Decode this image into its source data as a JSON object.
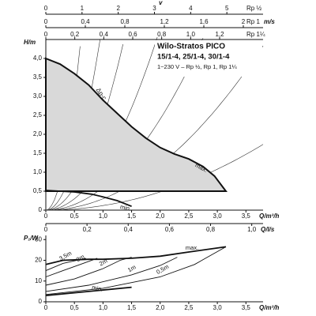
{
  "header": {
    "title": "Wilo-Stratos PICO",
    "models": "15/1-4, 25/1-4, 30/1-4",
    "spec": "1~230 V – Rp ½, Rp 1, Rp 1¼"
  },
  "chart_data": [
    {
      "type": "line",
      "ylabel": "H/m",
      "xlabel": "Q/m³/h",
      "x2label": "Q/l/s",
      "xlim": [
        0,
        3.8
      ],
      "ylim": [
        0,
        4.5
      ],
      "xticks": [
        0,
        {
          "value": 0.5,
          "label": "0,5"
        },
        {
          "value": 1.0,
          "label": "1,0"
        },
        {
          "value": 1.5,
          "label": "1,5"
        },
        {
          "value": 2.0,
          "label": "2,0"
        },
        {
          "value": 2.5,
          "label": "2,5"
        },
        {
          "value": 3.0,
          "label": "3,0"
        },
        {
          "value": 3.5,
          "label": "3,5"
        }
      ],
      "yticks": [
        0,
        {
          "value": 0.5,
          "label": "0,5"
        },
        {
          "value": 1.0,
          "label": "1,0"
        },
        {
          "value": 1.5,
          "label": "1,5"
        },
        {
          "value": 2.0,
          "label": "2,0"
        },
        {
          "value": 2.5,
          "label": "2,5"
        },
        {
          "value": 3.0,
          "label": "3,0"
        },
        {
          "value": 3.5,
          "label": "3,5"
        },
        {
          "value": 4.0,
          "label": "4,0"
        }
      ],
      "x2lim": [
        0,
        1.055
      ],
      "x2ticks": [
        0,
        {
          "value": 0.2,
          "label": "0,2"
        },
        {
          "value": 0.4,
          "label": "0,4"
        },
        {
          "value": 0.6,
          "label": "0,6"
        },
        {
          "value": 0.8,
          "label": "0,8"
        },
        {
          "value": 1.0,
          "label": "1,0"
        }
      ],
      "velocity_label": "v",
      "velocity_unit": "m/s",
      "velocity_scales": [
        {
          "name": "Rp ½",
          "lim": [
            0,
            6
          ],
          "ticks": [
            0,
            1,
            2,
            3,
            4,
            5
          ]
        },
        {
          "name": "Rp 1",
          "lim": [
            0,
            2.2
          ],
          "ticks": [
            0,
            {
              "value": 0.4,
              "label": "0,4"
            },
            {
              "value": 0.8,
              "label": "0,8"
            },
            {
              "value": 1.2,
              "label": "1,2"
            },
            {
              "value": 1.6,
              "label": "1,6"
            },
            2
          ]
        },
        {
          "name": "Rp 1¼",
          "lim": [
            0,
            1.5
          ],
          "ticks": [
            0,
            {
              "value": 0.2,
              "label": "0,2"
            },
            {
              "value": 0.4,
              "label": "0,4"
            },
            {
              "value": 0.6,
              "label": "0,6"
            },
            {
              "value": 0.8,
              "label": "0,8"
            },
            {
              "value": 1.0,
              "label": "1,0"
            },
            {
              "value": 1.2,
              "label": "1,2"
            }
          ]
        }
      ],
      "annotation": "Δp-c",
      "series": [
        {
          "name": "max.",
          "color": "#111111",
          "x": [
            0,
            0.25,
            0.5,
            0.75,
            1.0,
            1.25,
            1.5,
            1.75,
            2.0,
            2.25,
            2.5,
            2.75,
            2.95,
            3.15
          ],
          "values": [
            4.0,
            3.85,
            3.6,
            3.3,
            2.9,
            2.55,
            2.2,
            1.9,
            1.65,
            1.48,
            1.35,
            1.15,
            0.9,
            0.5
          ]
        },
        {
          "name": "min.",
          "color": "#111111",
          "x": [
            0,
            0.5,
            0.8,
            1.0,
            1.25,
            1.5
          ],
          "values": [
            0.52,
            0.48,
            0.42,
            0.35,
            0.25,
            0.1
          ]
        }
      ]
    },
    {
      "type": "line",
      "ylabel": "P₁/W",
      "xlabel": "Q/m³/h",
      "xlim": [
        0,
        3.8
      ],
      "ylim": [
        0,
        32
      ],
      "xticks": [
        0,
        {
          "value": 0.5,
          "label": "0,5"
        },
        {
          "value": 1.0,
          "label": "1,0"
        },
        {
          "value": 1.5,
          "label": "1,5"
        },
        {
          "value": 2.0,
          "label": "2,0"
        },
        {
          "value": 2.5,
          "label": "2,5"
        },
        {
          "value": 3.0,
          "label": "3,0"
        },
        {
          "value": 3.5,
          "label": "3,5"
        }
      ],
      "yticks": [
        0,
        10,
        20,
        30
      ],
      "series": [
        {
          "name": "max.",
          "color": "#111111",
          "x": [
            0,
            0.3,
            0.75,
            1.0,
            1.5,
            2.0,
            2.5,
            3.15
          ],
          "values": [
            18,
            20,
            20.5,
            20.5,
            21,
            22,
            24,
            26.5
          ]
        },
        {
          "name": "3,5m",
          "color": "#111111",
          "x": [
            0,
            0.3,
            0.7
          ],
          "values": [
            15,
            18.5,
            21
          ]
        },
        {
          "name": "3m",
          "color": "#111111",
          "x": [
            0,
            0.3,
            0.6,
            0.9
          ],
          "values": [
            12,
            15,
            18,
            21
          ]
        },
        {
          "name": "2m",
          "color": "#111111",
          "x": [
            0,
            0.5,
            1.0,
            1.3,
            1.5
          ],
          "values": [
            8,
            11,
            16,
            20,
            21.5
          ]
        },
        {
          "name": "1m",
          "color": "#111111",
          "x": [
            0,
            0.75,
            1.5,
            2.0,
            2.3
          ],
          "values": [
            5,
            8,
            13,
            17.5,
            21.5
          ]
        },
        {
          "name": "0,5m",
          "color": "#111111",
          "x": [
            0,
            1.0,
            2.0,
            2.6,
            3.15
          ],
          "values": [
            3.5,
            6.5,
            12,
            18,
            26.5
          ]
        },
        {
          "name": "min.",
          "color": "#111111",
          "x": [
            0,
            0.75,
            1.5
          ],
          "values": [
            3,
            5,
            7
          ]
        }
      ]
    }
  ]
}
